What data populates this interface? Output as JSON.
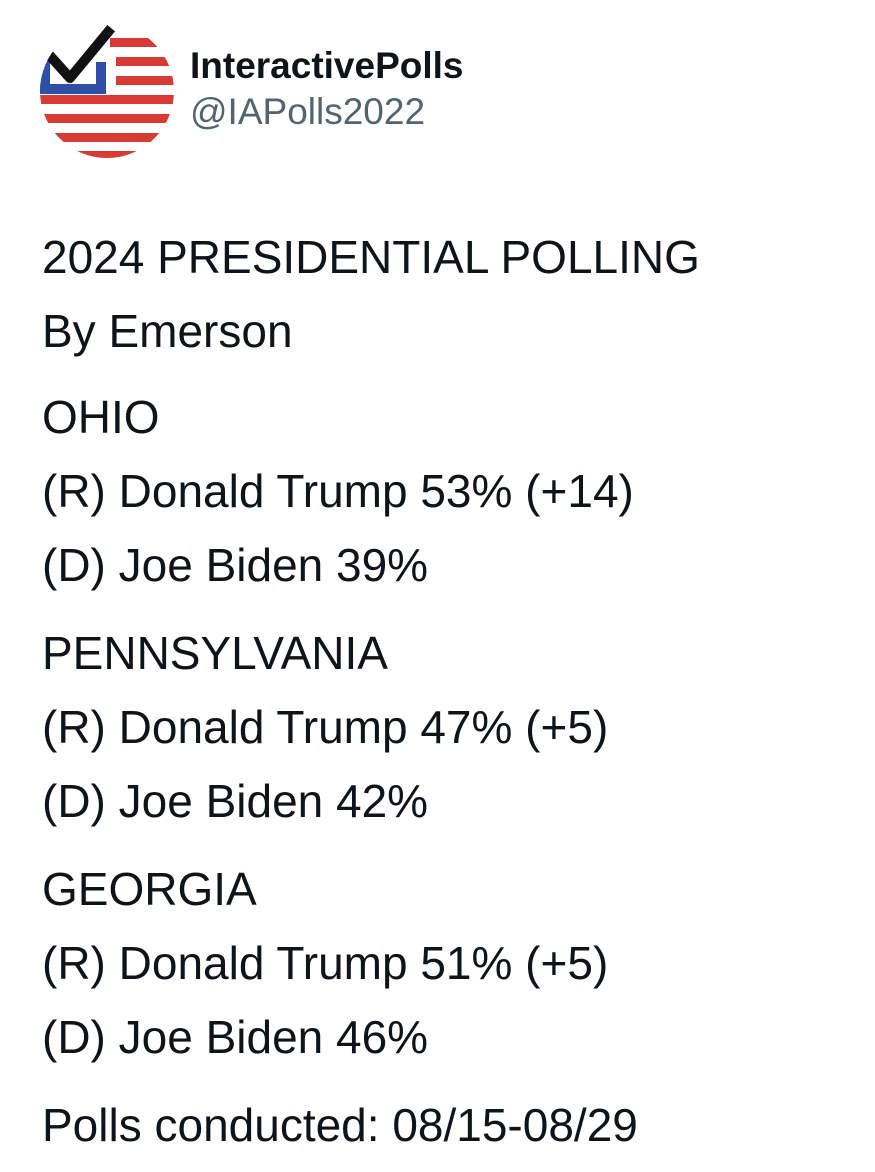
{
  "account": {
    "display_name": "InteractivePolls",
    "handle": "@IAPolls2022",
    "avatar_icon": "checkmark-flag-icon",
    "colors": {
      "blue": "#2f4fa6",
      "red": "#d83a34",
      "check": "#111111"
    }
  },
  "tweet": {
    "title": "2024 PRESIDENTIAL POLLING",
    "source": "By Emerson",
    "states": [
      {
        "name": "OHIO",
        "lines": [
          "(R) Donald Trump 53% (+14)",
          "(D) Joe Biden 39%"
        ]
      },
      {
        "name": "PENNSYLVANIA",
        "lines": [
          "(R) Donald Trump 47% (+5)",
          "(D) Joe Biden 42%"
        ]
      },
      {
        "name": "GEORGIA",
        "lines": [
          "(R) Donald Trump 51% (+5)",
          "(D) Joe Biden 46%"
        ]
      }
    ],
    "footer": "Polls conducted: 08/15-08/29"
  }
}
